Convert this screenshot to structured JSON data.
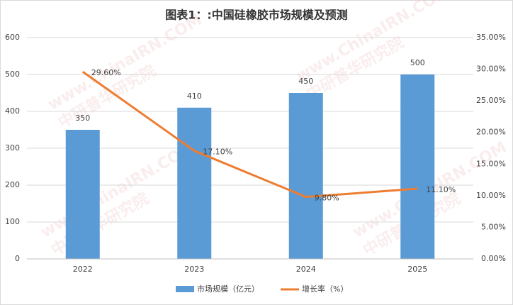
{
  "chart_data": {
    "type": "bar",
    "title": "图表1：:中国硅橡胶市场规模及预测",
    "watermark": [
      "www.ChinaIRN.COM",
      "中研普华研究院"
    ],
    "categories": [
      "2022",
      "2023",
      "2024",
      "2025"
    ],
    "series": [
      {
        "name": "市场规模（亿元）",
        "type": "bar",
        "color": "#5b9bd5",
        "values": [
          350,
          410,
          450,
          500
        ]
      },
      {
        "name": "增长率（%）",
        "type": "line",
        "axis": "y2",
        "color": "#ed7d31",
        "values": [
          29.6,
          17.1,
          9.8,
          11.1
        ],
        "value_labels": [
          "29.60%",
          "17.10%",
          "9.80%",
          "11.10%"
        ]
      }
    ],
    "ylim": [
      0,
      600
    ],
    "yticks": [
      0,
      100,
      200,
      300,
      400,
      500,
      600
    ],
    "y2lim": [
      0,
      35
    ],
    "y2ticks": [
      {
        "value": 0,
        "label": "0.00%"
      },
      {
        "value": 5,
        "label": "5.00%"
      },
      {
        "value": 10,
        "label": "10.00%"
      },
      {
        "value": 15,
        "label": "15.00%"
      },
      {
        "value": 20,
        "label": "20.00%"
      },
      {
        "value": 25,
        "label": "25.00%"
      },
      {
        "value": 30,
        "label": "30.00%"
      },
      {
        "value": 35,
        "label": "35.00%"
      }
    ],
    "grid": true,
    "legend": "bottom"
  }
}
